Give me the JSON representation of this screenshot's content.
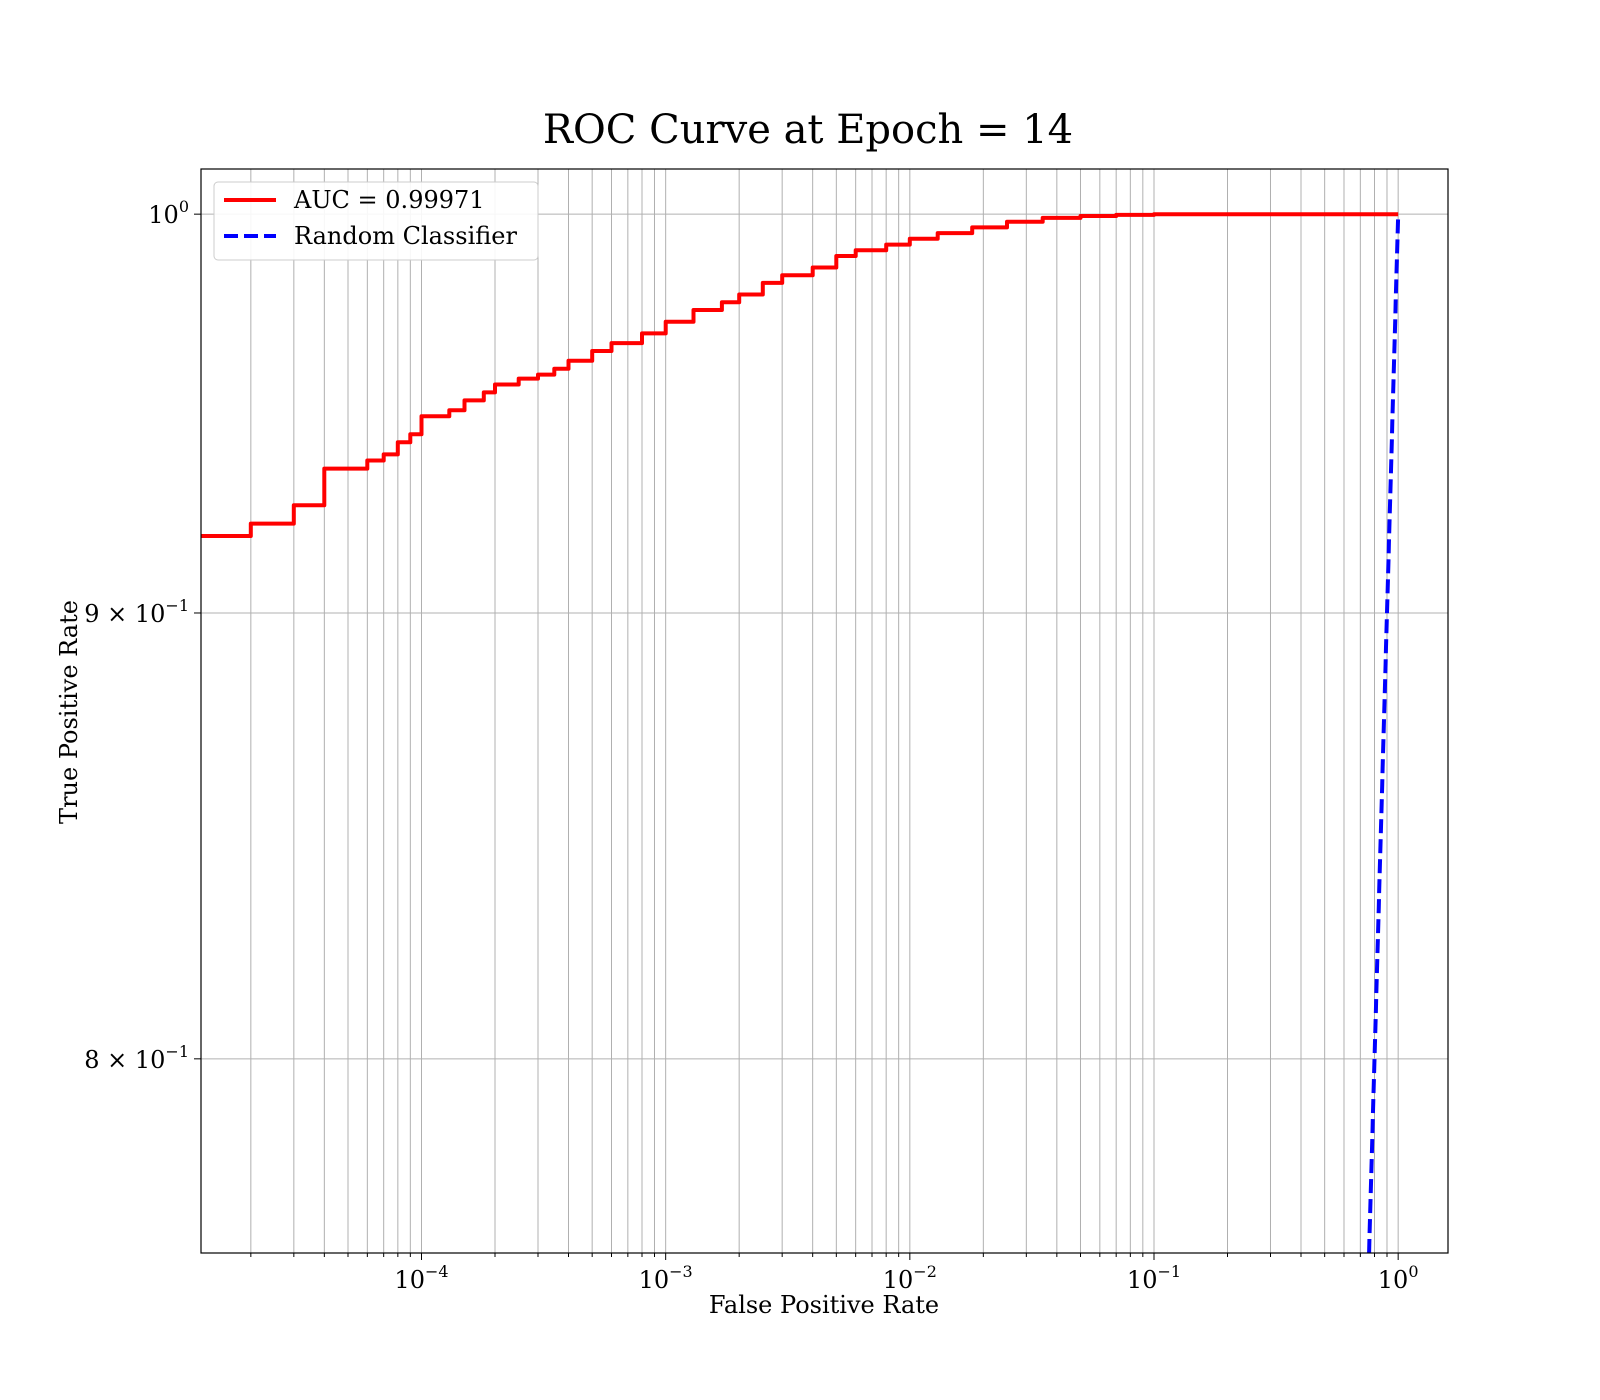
{
  "chart_data": {
    "type": "line",
    "title": "ROC Curve at Epoch = 14",
    "xlabel": "False Positive Rate",
    "ylabel": "True Positive Rate",
    "xscale": "log",
    "yscale": "log",
    "xlim": [
      1.25e-05,
      1.6
    ],
    "ylim": [
      0.76,
      1.012
    ],
    "grid": "both",
    "legend_placement": "top-left",
    "x_ticks": [
      {
        "value": 0.0001,
        "base": "10",
        "exp": "−4"
      },
      {
        "value": 0.001,
        "base": "10",
        "exp": "−3"
      },
      {
        "value": 0.01,
        "base": "10",
        "exp": "−2"
      },
      {
        "value": 0.1,
        "base": "10",
        "exp": "−1"
      },
      {
        "value": 1,
        "base": "10",
        "exp": "0"
      }
    ],
    "y_ticks": [
      {
        "value": 1.0,
        "base": "10",
        "exp": "0"
      },
      {
        "value": 0.9,
        "base": "9 × 10",
        "exp": "−1"
      },
      {
        "value": 0.8,
        "base": "8 × 10",
        "exp": "−1"
      }
    ],
    "series": [
      {
        "name": "AUC = 0.99971",
        "color": "#ff0000",
        "style": "solid",
        "step": true,
        "x": [
          1.25e-05,
          2e-05,
          3e-05,
          4e-05,
          6e-05,
          7e-05,
          8e-05,
          9e-05,
          0.0001,
          0.00013,
          0.00015,
          0.00018,
          0.0002,
          0.00025,
          0.0003,
          0.00035,
          0.0004,
          0.0005,
          0.0006,
          0.0008,
          0.001,
          0.0013,
          0.0017,
          0.002,
          0.0025,
          0.003,
          0.004,
          0.005,
          0.006,
          0.008,
          0.01,
          0.013,
          0.018,
          0.025,
          0.035,
          0.05,
          0.07,
          0.1,
          0.2,
          0.5,
          1.0
        ],
        "y": [
          0.9185,
          0.9215,
          0.926,
          0.935,
          0.937,
          0.9385,
          0.9415,
          0.9435,
          0.948,
          0.9495,
          0.952,
          0.954,
          0.956,
          0.9575,
          0.9585,
          0.96,
          0.962,
          0.9645,
          0.9665,
          0.969,
          0.972,
          0.975,
          0.977,
          0.979,
          0.982,
          0.984,
          0.986,
          0.989,
          0.9905,
          0.992,
          0.9935,
          0.995,
          0.9965,
          0.998,
          0.999,
          0.9995,
          0.9998,
          1.0,
          1.0,
          1.0,
          1.0
        ]
      },
      {
        "name": "Random Classifier",
        "color": "#0000ff",
        "style": "dashed",
        "step": false,
        "x": [
          0.76,
          1.0
        ],
        "y": [
          0.76,
          1.0
        ]
      }
    ]
  }
}
